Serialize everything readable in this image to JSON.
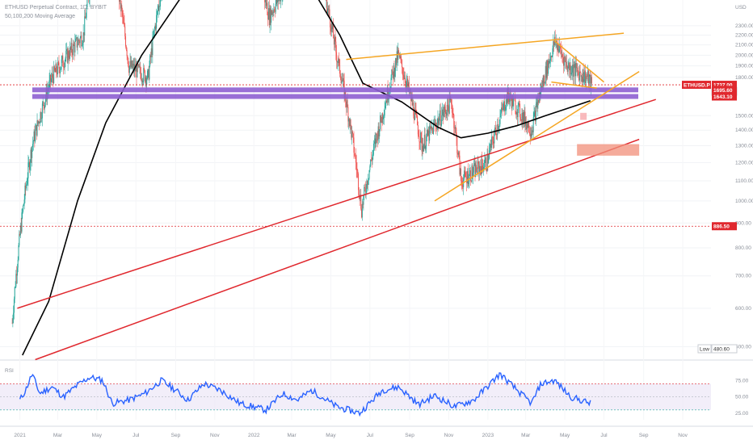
{
  "chart_data": {
    "type": "candlestick",
    "title": "ETHUSD Perpetual Contract, 1D, BYBIT",
    "subtitle": "50,100,200 Moving Average",
    "currency": "USD",
    "price_axis": {
      "scale": "log",
      "range": [
        480,
        2600
      ],
      "ticks": [
        "2300.00",
        "2200.00",
        "2100.00",
        "2000.00",
        "1900.00",
        "1800.00",
        "1500.00",
        "1400.00",
        "1300.00",
        "1200.00",
        "1100.00",
        "1000.00",
        "900.00",
        "800.00",
        "700.00",
        "600.00",
        "500.00"
      ]
    },
    "time_axis": {
      "ticks": [
        "2021",
        "Mar",
        "May",
        "Jul",
        "Sep",
        "Nov",
        "2022",
        "Mar",
        "May",
        "Jul",
        "Sep",
        "Nov",
        "2023",
        "Mar",
        "May",
        "Jul",
        "Sep",
        "Nov"
      ]
    },
    "price_tags": [
      {
        "label": "ETHUSD.P",
        "value": "1737.00",
        "color": "#e0282e"
      },
      {
        "label": "",
        "value": "14:15:35",
        "color": "#ffffff"
      },
      {
        "label": "",
        "value": "1695.60",
        "color": "#e0282e"
      },
      {
        "label": "",
        "value": "1643.10",
        "color": "#e0282e"
      },
      {
        "label": "",
        "value": "886.50",
        "color": "#e0282e"
      },
      {
        "label": "Low",
        "value": "480.60",
        "color": "#ffffff"
      }
    ],
    "moving_average_path": [
      [
        "2021-01-05",
        480
      ],
      [
        "2021-02-15",
        620
      ],
      [
        "2021-04-01",
        1000
      ],
      [
        "2021-05-15",
        1450
      ],
      [
        "2021-07-10",
        2000
      ],
      [
        "2021-09-15",
        2700
      ],
      [
        "2021-11-20",
        3600
      ],
      [
        "2022-02-10",
        3300
      ],
      [
        "2022-04-05",
        2700
      ],
      [
        "2022-05-15",
        2200
      ],
      [
        "2022-06-20",
        1750
      ],
      [
        "2022-08-20",
        1600
      ],
      [
        "2022-10-15",
        1420
      ],
      [
        "2022-11-20",
        1350
      ],
      [
        "2023-01-01",
        1380
      ],
      [
        "2023-02-15",
        1430
      ],
      [
        "2023-04-01",
        1500
      ],
      [
        "2023-05-10",
        1560
      ],
      [
        "2023-06-10",
        1610
      ]
    ],
    "horizontal_zones": [
      {
        "price": 1695.6,
        "color": "#8e5fd1"
      },
      {
        "price": 1643.1,
        "color": "#8e5fd1"
      }
    ],
    "reference_lines": [
      {
        "price": 1737.0,
        "color": "#e0282e",
        "style": "dotted"
      },
      {
        "price": 886.5,
        "color": "#e0282e",
        "style": "dotted"
      }
    ],
    "trendlines": [
      {
        "color": "#e0282e",
        "from": [
          "2020-12-28",
          600
        ],
        "to": [
          "2023-09-20",
          1620
        ]
      },
      {
        "color": "#e0282e",
        "from": [
          "2021-01-25",
          470
        ],
        "to": [
          "2023-08-25",
          1340
        ]
      },
      {
        "color": "#f5a623",
        "from": [
          "2022-05-25",
          1960
        ],
        "to": [
          "2023-08-01",
          2220
        ]
      },
      {
        "color": "#f5a623",
        "from": [
          "2022-10-10",
          1000
        ],
        "to": [
          "2023-08-25",
          1850
        ]
      },
      {
        "color": "#f5a623",
        "from": [
          "2023-04-15",
          2140
        ],
        "to": [
          "2023-07-01",
          1760
        ]
      },
      {
        "color": "#f5a623",
        "from": [
          "2023-04-10",
          1760
        ],
        "to": [
          "2023-06-20",
          1710
        ]
      }
    ],
    "rsi": {
      "label": "RSI",
      "ticks": [
        "75.00",
        "50.00",
        "25.00"
      ],
      "upper": 70,
      "lower": 30,
      "path": [
        [
          "2021-01-01",
          45
        ],
        [
          "2021-01-10",
          60
        ],
        [
          "2021-01-20",
          85
        ],
        [
          "2021-02-01",
          55
        ],
        [
          "2021-02-20",
          65
        ],
        [
          "2021-03-10",
          50
        ],
        [
          "2021-04-01",
          68
        ],
        [
          "2021-04-20",
          80
        ],
        [
          "2021-05-10",
          75
        ],
        [
          "2021-05-25",
          40
        ],
        [
          "2021-06-20",
          45
        ],
        [
          "2021-07-15",
          55
        ],
        [
          "2021-08-10",
          75
        ],
        [
          "2021-09-01",
          60
        ],
        [
          "2021-09-20",
          45
        ],
        [
          "2021-10-15",
          70
        ],
        [
          "2021-11-10",
          60
        ],
        [
          "2021-12-10",
          40
        ],
        [
          "2022-01-20",
          30
        ],
        [
          "2022-02-15",
          55
        ],
        [
          "2022-03-10",
          45
        ],
        [
          "2022-04-01",
          60
        ],
        [
          "2022-05-10",
          35
        ],
        [
          "2022-06-15",
          25
        ],
        [
          "2022-07-20",
          60
        ],
        [
          "2022-08-15",
          65
        ],
        [
          "2022-09-15",
          38
        ],
        [
          "2022-10-10",
          52
        ],
        [
          "2022-11-10",
          35
        ],
        [
          "2022-12-10",
          45
        ],
        [
          "2023-01-20",
          85
        ],
        [
          "2023-02-10",
          65
        ],
        [
          "2023-03-10",
          40
        ],
        [
          "2023-03-25",
          70
        ],
        [
          "2023-04-15",
          75
        ],
        [
          "2023-05-10",
          50
        ],
        [
          "2023-05-25",
          45
        ],
        [
          "2023-06-10",
          40
        ]
      ]
    },
    "candles_note": "",
    "colors": {
      "up": "#26a69a",
      "down": "#ef5350",
      "ma": "#000000",
      "rsi": "#2962ff"
    }
  }
}
